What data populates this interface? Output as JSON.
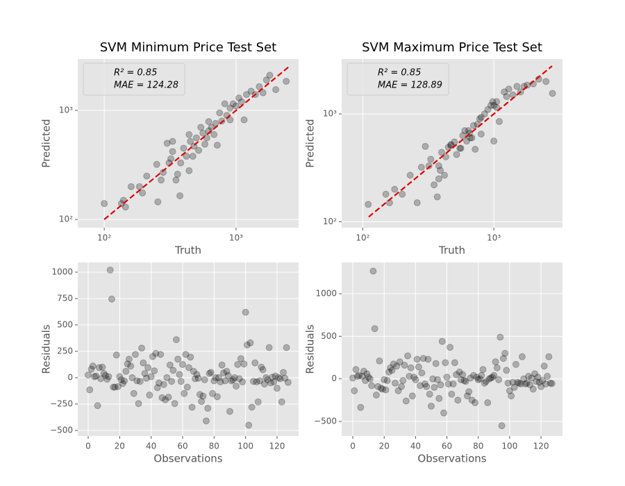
{
  "chart_data": [
    {
      "type": "scatter",
      "title": "SVM Minimum Price Test Set",
      "x_label": "Truth",
      "y_label": "Predicted",
      "xscale": "log",
      "yscale": "log",
      "xlim": [
        63,
        2980
      ],
      "ylim": [
        84,
        2960
      ],
      "xticks": [
        {
          "value": 100,
          "label": "10²"
        },
        {
          "value": 1000,
          "label": "10³"
        }
      ],
      "yticks": [
        {
          "value": 100,
          "label": "10²"
        },
        {
          "value": 1000,
          "label": "10³"
        }
      ],
      "grid": true,
      "color": "#000000",
      "alpha": 0.25,
      "annotations": [
        "R² = 0.85",
        "MAE = 124.28"
      ],
      "reference_line": {
        "x": [
          100,
          2500
        ],
        "y": [
          100,
          2500
        ],
        "color": "#e00000"
      },
      "x": [
        100,
        135,
        140,
        145,
        160,
        185,
        195,
        210,
        250,
        255,
        270,
        280,
        300,
        310,
        320,
        330,
        350,
        360,
        375,
        380,
        400,
        420,
        440,
        450,
        480,
        500,
        520,
        540,
        560,
        600,
        620,
        650,
        700,
        720,
        750,
        780,
        820,
        850,
        900,
        950,
        1000,
        1050,
        1100,
        1150,
        1200,
        1300,
        1400,
        1500,
        1600,
        1700,
        2000,
        2400,
        1800,
        440,
        580,
        680,
        330,
        470,
        620,
        900
      ],
      "values": [
        140,
        140,
        150,
        130,
        200,
        200,
        175,
        250,
        320,
        145,
        230,
        270,
        500,
        330,
        360,
        420,
        230,
        260,
        165,
        330,
        450,
        380,
        280,
        520,
        470,
        560,
        430,
        700,
        620,
        560,
        790,
        700,
        760,
        480,
        950,
        800,
        1150,
        900,
        1050,
        1150,
        1100,
        1300,
        1200,
        820,
        1400,
        1500,
        1400,
        1650,
        1450,
        1900,
        1550,
        1850,
        2100,
        600,
        490,
        600,
        520,
        380,
        650,
        820
      ]
    },
    {
      "type": "scatter",
      "title": "SVM Maximum Price Test Set",
      "x_label": "Truth",
      "y_label": "Predicted",
      "xscale": "log",
      "yscale": "log",
      "xlim": [
        69,
        3340
      ],
      "ylim": [
        88,
        3230
      ],
      "xticks": [
        {
          "value": 100,
          "label": "10²"
        },
        {
          "value": 1000,
          "label": "10³"
        }
      ],
      "yticks": [
        {
          "value": 100,
          "label": "10²"
        },
        {
          "value": 1000,
          "label": "10³"
        }
      ],
      "grid": true,
      "color": "#000000",
      "alpha": 0.25,
      "annotations": [
        "R² = 0.85",
        "MAE = 128.89"
      ],
      "reference_line": {
        "x": [
          111,
          2780
        ],
        "y": [
          111,
          2780
        ],
        "color": "#e00000"
      },
      "x": [
        110,
        150,
        160,
        175,
        200,
        230,
        260,
        280,
        300,
        320,
        330,
        350,
        370,
        380,
        390,
        400,
        420,
        450,
        470,
        500,
        520,
        550,
        580,
        600,
        620,
        650,
        680,
        700,
        720,
        750,
        780,
        800,
        850,
        900,
        950,
        980,
        1000,
        1050,
        1100,
        1200,
        1250,
        1300,
        1400,
        1500,
        1600,
        1700,
        1800,
        2000,
        2200,
        2500,
        2800,
        430,
        560,
        660,
        380,
        470,
        640,
        1000,
        1050,
        800
      ],
      "values": [
        145,
        180,
        150,
        200,
        180,
        270,
        150,
        320,
        500,
        330,
        380,
        220,
        170,
        250,
        300,
        440,
        270,
        490,
        510,
        550,
        420,
        480,
        630,
        700,
        560,
        660,
        600,
        780,
        470,
        800,
        900,
        650,
        1000,
        1100,
        1200,
        1300,
        1200,
        1300,
        850,
        1600,
        1450,
        1700,
        1500,
        1800,
        1600,
        1800,
        1850,
        1900,
        2100,
        2000,
        1550,
        400,
        480,
        600,
        330,
        520,
        700,
        560,
        1150,
        930
      ]
    },
    {
      "type": "scatter",
      "x_label": "Observations",
      "y_label": "Residuals",
      "xlim": [
        -6.6,
        133.7
      ],
      "ylim": [
        -553,
        1092
      ],
      "xticks": [
        0,
        20,
        40,
        60,
        80,
        100,
        120
      ],
      "yticks": [
        {
          "value": -500,
          "label": "−500"
        },
        {
          "value": -250,
          "label": "−250"
        },
        0,
        250,
        500,
        750,
        1000
      ],
      "grid": true,
      "color": "#000000",
      "alpha": 0.25,
      "x": [
        0,
        1,
        2,
        3,
        4,
        5,
        6,
        7,
        8,
        9,
        10,
        11,
        12,
        13,
        14,
        15,
        16,
        17,
        18,
        19,
        20,
        21,
        22,
        23,
        24,
        25,
        26,
        27,
        28,
        29,
        30,
        31,
        32,
        33,
        34,
        35,
        36,
        37,
        38,
        39,
        40,
        41,
        42,
        43,
        44,
        45,
        46,
        47,
        48,
        49,
        50,
        51,
        52,
        53,
        54,
        55,
        56,
        57,
        58,
        59,
        60,
        61,
        62,
        63,
        64,
        65,
        66,
        67,
        68,
        69,
        70,
        71,
        72,
        73,
        74,
        75,
        76,
        77,
        78,
        79,
        80,
        81,
        82,
        83,
        84,
        85,
        86,
        87,
        88,
        89,
        90,
        91,
        92,
        93,
        94,
        95,
        96,
        97,
        98,
        99,
        100,
        101,
        102,
        103,
        104,
        105,
        106,
        107,
        108,
        109,
        110,
        111,
        112,
        113,
        114,
        115,
        116,
        117,
        118,
        119,
        120,
        121,
        122,
        123,
        124,
        125,
        126,
        127
      ],
      "values": [
        25,
        -115,
        80,
        110,
        10,
        15,
        -265,
        95,
        -10,
        100,
        40,
        20,
        -15,
        10,
        1020,
        745,
        -90,
        -90,
        215,
        -85,
        10,
        -20,
        -55,
        -30,
        60,
        130,
        175,
        110,
        0,
        -150,
        220,
        -30,
        -245,
        -35,
        280,
        140,
        40,
        -5,
        95,
        -165,
        10,
        200,
        65,
        230,
        -95,
        -50,
        220,
        -190,
        -65,
        -210,
        0,
        -185,
        120,
        -35,
        70,
        -245,
        360,
        175,
        30,
        -35,
        125,
        -150,
        220,
        -90,
        95,
        195,
        -280,
        60,
        -10,
        30,
        -5,
        -160,
        -225,
        -175,
        -20,
        -410,
        -290,
        40,
        50,
        -150,
        -30,
        0,
        -180,
        0,
        -40,
        120,
        45,
        -30,
        60,
        20,
        -320,
        -30,
        -20,
        0,
        -80,
        125,
        -10,
        180,
        -40,
        130,
        620,
        310,
        -450,
        330,
        -280,
        -35,
        140,
        -40,
        -230,
        -30,
        100,
        75,
        -60,
        0,
        -20,
        285,
        -50,
        5,
        -40,
        15,
        -100,
        0,
        -10,
        -230,
        50,
        -5,
        285,
        -45
      ]
    },
    {
      "type": "scatter",
      "x_label": "Observations",
      "y_label": "Residuals",
      "xlim": [
        -7.1,
        133.7
      ],
      "ylim": [
        -671,
        1367
      ],
      "xticks": [
        0,
        20,
        40,
        60,
        80,
        100,
        120
      ],
      "yticks": [
        {
          "value": -500,
          "label": "−500"
        },
        0,
        500,
        1000
      ],
      "grid": true,
      "color": "#000000",
      "alpha": 0.25,
      "x": [
        0,
        1,
        2,
        3,
        4,
        5,
        6,
        7,
        8,
        9,
        10,
        11,
        12,
        13,
        14,
        15,
        16,
        17,
        18,
        19,
        20,
        21,
        22,
        23,
        24,
        25,
        26,
        27,
        28,
        29,
        30,
        31,
        32,
        33,
        34,
        35,
        36,
        37,
        38,
        39,
        40,
        41,
        42,
        43,
        44,
        45,
        46,
        47,
        48,
        49,
        50,
        51,
        52,
        53,
        54,
        55,
        56,
        57,
        58,
        59,
        60,
        61,
        62,
        63,
        64,
        65,
        66,
        67,
        68,
        69,
        70,
        71,
        72,
        73,
        74,
        75,
        76,
        77,
        78,
        79,
        80,
        81,
        82,
        83,
        84,
        85,
        86,
        87,
        88,
        89,
        90,
        91,
        92,
        93,
        94,
        95,
        96,
        97,
        98,
        99,
        100,
        101,
        102,
        103,
        104,
        105,
        106,
        107,
        108,
        109,
        110,
        111,
        112,
        113,
        114,
        115,
        116,
        117,
        118,
        119,
        120,
        121,
        122,
        123,
        124,
        125,
        126,
        127
      ],
      "values": [
        10,
        -140,
        110,
        30,
        40,
        -335,
        30,
        90,
        -20,
        60,
        20,
        0,
        -80,
        1265,
        590,
        -190,
        -90,
        210,
        -110,
        -120,
        -10,
        -130,
        -20,
        80,
        130,
        100,
        175,
        -50,
        150,
        -140,
        200,
        -90,
        -20,
        160,
        -260,
        270,
        30,
        130,
        -200,
        20,
        -10,
        230,
        140,
        -80,
        70,
        240,
        -60,
        -90,
        230,
        -180,
        -320,
        0,
        -100,
        180,
        -10,
        -230,
        -70,
        440,
        -400,
        190,
        20,
        -60,
        370,
        -180,
        -60,
        190,
        50,
        -250,
        80,
        -10,
        50,
        -20,
        -30,
        -200,
        -150,
        10,
        -250,
        40,
        -280,
        20,
        -10,
        0,
        40,
        110,
        -50,
        -30,
        -280,
        0,
        10,
        20,
        40,
        200,
        130,
        -10,
        490,
        -550,
        240,
        300,
        100,
        -50,
        -140,
        -200,
        -40,
        -100,
        170,
        -40,
        -50,
        -60,
        260,
        0,
        -60,
        -50,
        30,
        -70,
        10,
        -120,
        60,
        -30,
        20,
        -40,
        -90,
        -20,
        150,
        -60,
        30,
        260,
        -50,
        -55
      ]
    }
  ]
}
